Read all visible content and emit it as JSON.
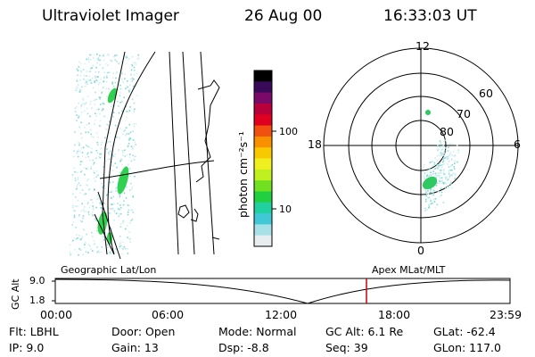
{
  "header": {
    "instrument": "Ultraviolet Imager",
    "date": "26 Aug 00",
    "time": "16:33:03 UT"
  },
  "colorbar": {
    "unit_label": "photon cm⁻²s⁻¹",
    "ticks": [
      "100",
      "10"
    ],
    "colors": [
      "#000000",
      "#3a0a5a",
      "#7a0a6a",
      "#b8003a",
      "#e00020",
      "#f05010",
      "#f89000",
      "#f8c800",
      "#f0f020",
      "#c0f020",
      "#70e020",
      "#20d040",
      "#20d0a0",
      "#40c8d8",
      "#a8e0e8",
      "#e8eef0"
    ]
  },
  "polar_plot": {
    "mlt_labels": {
      "top": "12",
      "left": "18",
      "right": "6",
      "bottom": "0"
    },
    "lat_labels": [
      "60",
      "70",
      "80"
    ]
  },
  "timeline": {
    "left_label": "Geographic Lat/Lon",
    "right_label": "Apex MLat/MLT",
    "y_axis_title": "GC Alt",
    "y_ticks": [
      "9.0",
      "1.8"
    ],
    "x_ticks": [
      "00:00",
      "06:00",
      "12:00",
      "18:00",
      "23:59"
    ],
    "marker_color": "#cc0000",
    "marker_time": "16:33:03"
  },
  "status": {
    "filter": "Flt: LBHL",
    "ip": "IP:  9.0",
    "door": "Door: Open",
    "gain": "Gain: 13",
    "mode": "Mode: Normal",
    "dsp": "Dsp:   -8.8",
    "gc_alt": "GC Alt: 6.1 Re",
    "seq": "Seq: 39",
    "glat": "GLat: -62.4",
    "glon": "GLon: 117.0"
  }
}
